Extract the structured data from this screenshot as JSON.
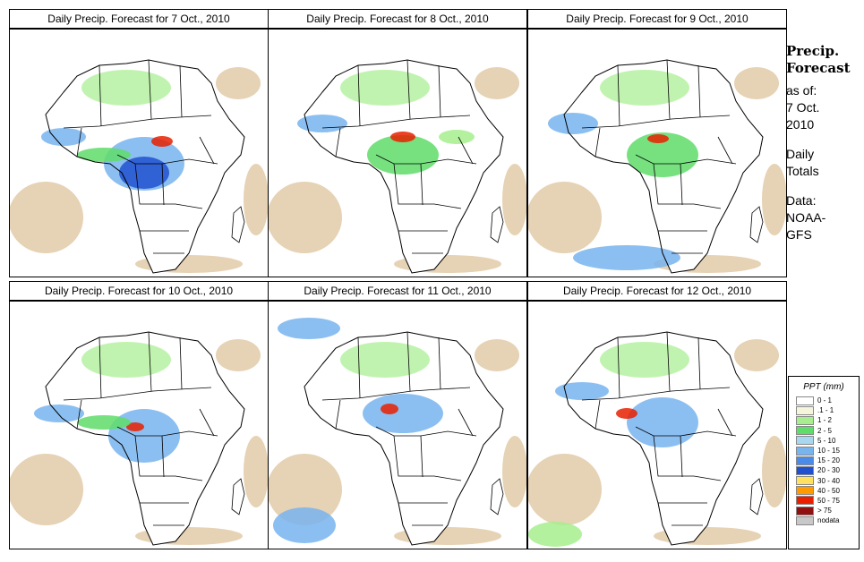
{
  "panels": [
    {
      "title": "Daily Precip. Forecast for  7 Oct., 2010"
    },
    {
      "title": "Daily Precip. Forecast for  8 Oct., 2010"
    },
    {
      "title": "Daily Precip. Forecast for  9 Oct., 2010"
    },
    {
      "title": "Daily Precip. Forecast for  10 Oct., 2010"
    },
    {
      "title": "Daily Precip. Forecast for  11 Oct., 2010"
    },
    {
      "title": "Daily Precip. Forecast for  12 Oct., 2010"
    }
  ],
  "side": {
    "heading_line1": "Precip.",
    "heading_line2": "Forecast",
    "asof_line1": "as of:",
    "asof_line2": "7 Oct.",
    "asof_line3": "2010",
    "totals_line1": "Daily",
    "totals_line2": "Totals",
    "data_line1": "Data:",
    "data_line2": "NOAA-",
    "data_line3": "GFS"
  },
  "legend": {
    "title": "PPT (mm)",
    "items": [
      {
        "label": "0 - 1",
        "color": "#ffffff"
      },
      {
        "label": ".1 - 1",
        "color": "#f5f5dc"
      },
      {
        "label": "1 - 2",
        "color": "#a6ee8e"
      },
      {
        "label": "2 - 5",
        "color": "#5fdc6a"
      },
      {
        "label": "5 - 10",
        "color": "#a8d8f0"
      },
      {
        "label": "10 - 15",
        "color": "#78b4ee"
      },
      {
        "label": "15 - 20",
        "color": "#4a8ae8"
      },
      {
        "label": "20 - 30",
        "color": "#2050d0"
      },
      {
        "label": "30 - 40",
        "color": "#ffe060"
      },
      {
        "label": "40 - 50",
        "color": "#ff9a00"
      },
      {
        "label": "50 - 75",
        "color": "#e82000"
      },
      {
        "label": "> 75",
        "color": "#901010"
      },
      {
        "label": "nodata",
        "color": "#c8c8c8"
      }
    ]
  },
  "colors": {
    "dry": "#e6d2b4",
    "light": "#a6ee8e",
    "moderate": "#5fdc6a",
    "wet": "#78b4ee",
    "heavy": "#2050d0",
    "extreme": "#e82000"
  }
}
